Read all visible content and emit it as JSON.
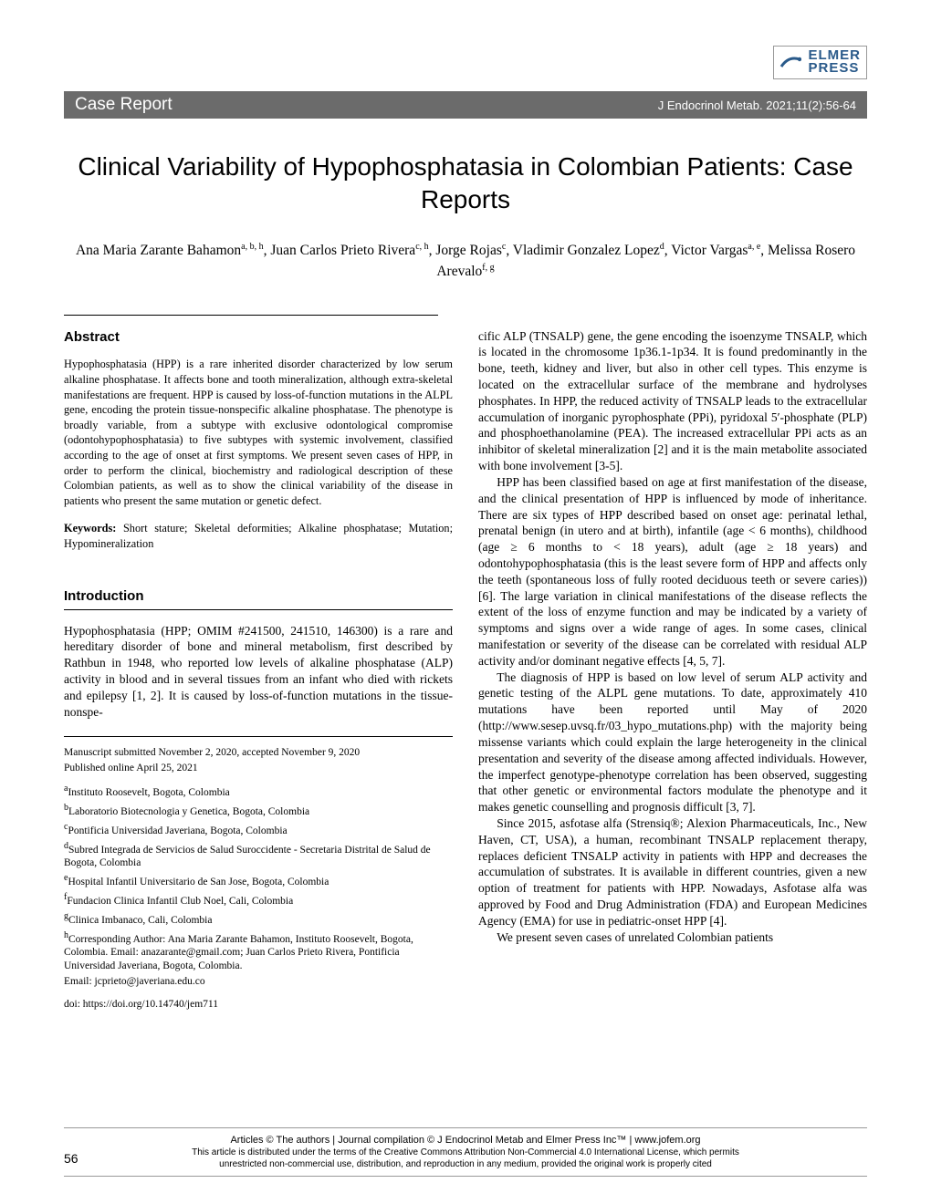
{
  "logo": {
    "name_line1": "ELMER",
    "name_line2": "PRESS",
    "swoosh_color": "#2a5a8a"
  },
  "header": {
    "section": "Case Report",
    "citation": "J Endocrinol Metab. 2021;11(2):56-64",
    "bar_color": "#6b6b6b"
  },
  "title": "Clinical Variability of Hypophosphatasia in Colombian Patients: Case Reports",
  "authors_html": "Ana Maria Zarante Bahamon<sup>a, b, h</sup>, Juan Carlos Prieto Rivera<sup>c, h</sup>, Jorge Rojas<sup>c</sup>, Vladimir Gonzalez Lopez<sup>d</sup>, Victor Vargas<sup>a, e</sup>, Melissa Rosero Arevalo<sup>f, g</sup>",
  "abstract": {
    "heading": "Abstract",
    "text": "Hypophosphatasia (HPP) is a rare inherited disorder characterized by low serum alkaline phosphatase. It affects bone and tooth mineralization, although extra-skeletal manifestations are frequent. HPP is caused by loss-of-function mutations in the ALPL gene, encoding the protein tissue-nonspecific alkaline phosphatase. The phenotype is broadly variable, from a subtype with exclusive odontological compromise (odontohypophosphatasia) to five subtypes with systemic involvement, classified according to the age of onset at first symptoms. We present seven cases of HPP, in order to perform the clinical, biochemistry and radiological description of these Colombian patients, as well as to show the clinical variability of the disease in patients who present the same mutation or genetic defect.",
    "keywords_label": "Keywords:",
    "keywords": " Short stature; Skeletal deformities; Alkaline phosphatase; Mutation; Hypomineralization"
  },
  "introduction": {
    "heading": "Introduction",
    "para1": "Hypophosphatasia (HPP; OMIM #241500, 241510, 146300) is a rare and hereditary disorder of bone and mineral metabolism, first described by Rathbun in 1948, who reported low levels of alkaline phosphatase (ALP) activity in blood and in several tissues from an infant who died with rickets and epilepsy [1, 2]. It is caused by loss-of-function mutations in the tissue-nonspe-"
  },
  "manuscript": {
    "submitted": "Manuscript submitted November 2, 2020, accepted November 9, 2020",
    "published": "Published online April 25, 2021"
  },
  "affiliations": {
    "a": "Instituto Roosevelt, Bogota, Colombia",
    "b": "Laboratorio Biotecnologia y Genetica, Bogota, Colombia",
    "c": "Pontificia Universidad Javeriana, Bogota, Colombia",
    "d": "Subred Integrada de Servicios de Salud Suroccidente - Secretaria Distrital de Salud de Bogota, Colombia",
    "e": "Hospital Infantil Universitario de San Jose, Bogota, Colombia",
    "f": "Fundacion Clinica Infantil Club Noel, Cali, Colombia",
    "g": "Clinica Imbanaco, Cali, Colombia",
    "h": "Corresponding Author: Ana Maria Zarante Bahamon, Instituto Roosevelt, Bogota, Colombia. Email: anazarante@gmail.com; Juan Carlos Prieto Rivera, Pontificia Universidad Javeriana, Bogota, Colombia.",
    "h2": "Email: jcprieto@javeriana.edu.co"
  },
  "doi": "doi: https://doi.org/10.14740/jem711",
  "body": {
    "p1": "cific ALP (TNSALP) gene, the gene encoding the isoenzyme TNSALP, which is located in the chromosome 1p36.1-1p34. It is found predominantly in the bone, teeth, kidney and liver, but also in other cell types. This enzyme is located on the extracellular surface of the membrane and hydrolyses phosphates. In HPP, the reduced activity of TNSALP leads to the extracellular accumulation of inorganic pyrophosphate (PPi), pyridoxal 5′-phosphate (PLP) and phosphoethanolamine (PEA). The increased extracellular PPi acts as an inhibitor of skeletal mineralization [2] and it is the main metabolite associated with bone involvement [3-5].",
    "p2": "HPP has been classified based on age at first manifestation of the disease, and the clinical presentation of HPP is influenced by mode of inheritance. There are six types of HPP described based on onset age: perinatal lethal, prenatal benign (in utero and at birth), infantile (age < 6 months), childhood (age ≥ 6 months to < 18 years), adult (age ≥ 18 years) and odontohypophosphatasia (this is the least severe form of HPP and affects only the teeth (spontaneous loss of fully rooted deciduous teeth or severe caries)) [6]. The large variation in clinical manifestations of the disease reflects the extent of the loss of enzyme function and may be indicated by a variety of symptoms and signs over a wide range of ages. In some cases, clinical manifestation or severity of the disease can be correlated with residual ALP activity and/or dominant negative effects [4, 5, 7].",
    "p3": "The diagnosis of HPP is based on low level of serum ALP activity and genetic testing of the ALPL gene mutations. To date, approximately 410 mutations have been reported until May of 2020 (http://www.sesep.uvsq.fr/03_hypo_mutations.php) with the majority being missense variants which could explain the large heterogeneity in the clinical presentation and severity of the disease among affected individuals. However, the imperfect genotype-phenotype correlation has been observed, suggesting that other genetic or environmental factors modulate the phenotype and it makes genetic counselling and prognosis difficult [3, 7].",
    "p4": "Since 2015, asfotase alfa (Strensiq®; Alexion Pharmaceuticals, Inc., New Haven, CT, USA), a human, recombinant TNSALP replacement therapy, replaces deficient TNSALP activity in patients with HPP and decreases the accumulation of substrates. It is available in different countries, given a new option of treatment for patients with HPP. Nowadays, Asfotase alfa was approved by Food and Drug Administration (FDA) and European Medicines Agency (EMA) for use in pediatric-onset HPP [4].",
    "p5": "We present seven cases of unrelated Colombian patients"
  },
  "footer": {
    "line1": "Articles © The authors   |   Journal compilation © J Endocrinol Metab and Elmer Press Inc™   |   www.jofem.org",
    "line2": "This article is distributed under the terms of the Creative Commons Attribution Non-Commercial 4.0 International License, which permits",
    "line3": "unrestricted non-commercial use, distribution, and reproduction in any medium, provided the original work is properly cited"
  },
  "page_number": "56",
  "colors": {
    "text": "#000000",
    "bg": "#ffffff",
    "brand_blue": "#2a5a8a",
    "bar": "#6b6b6b",
    "rule": "#999999"
  },
  "fonts": {
    "title_family": "Arial",
    "title_size_pt": 21,
    "body_family": "Times New Roman",
    "body_size_pt": 10,
    "abstract_size_pt": 9.2,
    "header_family": "Segoe UI"
  }
}
